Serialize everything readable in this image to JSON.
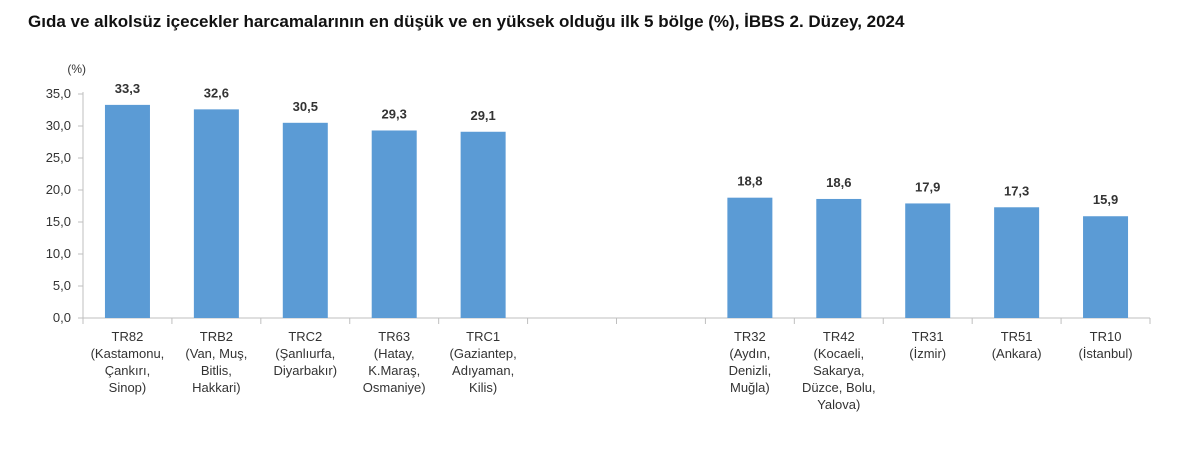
{
  "chart_data": {
    "type": "bar",
    "title": "Gıda ve alkolsüz içecekler harcamalarının en düşük ve en yüksek olduğu ilk 5 bölge (%), İBBS 2. Düzey, 2024",
    "ylabel": "(%)",
    "ylim": [
      0,
      35
    ],
    "yticks": [
      "0,0",
      "5,0",
      "10,0",
      "15,0",
      "20,0",
      "25,0",
      "30,0",
      "35,0"
    ],
    "grid": false,
    "bar_color": "#5B9BD5",
    "categories": [
      [
        "TR82",
        "(Kastamonu,",
        "Çankırı,",
        "Sinop)"
      ],
      [
        "TRB2",
        "(Van, Muş,",
        "Bitlis,",
        "Hakkari)"
      ],
      [
        "TRC2",
        "(Şanlıurfa,",
        "Diyarbakır)"
      ],
      [
        "TR63",
        "(Hatay,",
        "K.Maraş,",
        "Osmaniye)"
      ],
      [
        "TRC1",
        "(Gaziantep,",
        "Adıyaman,",
        "Kilis)"
      ],
      [],
      [],
      [
        "TR32",
        "(Aydın,",
        "Denizli,",
        "Muğla)"
      ],
      [
        "TR42",
        "(Kocaeli,",
        "Sakarya,",
        "Düzce, Bolu,",
        "Yalova)"
      ],
      [
        "TR31",
        "(İzmir)"
      ],
      [
        "TR51",
        "(Ankara)"
      ],
      [
        "TR10",
        "(İstanbul)"
      ]
    ],
    "values": [
      33.3,
      32.6,
      30.5,
      29.3,
      29.1,
      null,
      null,
      18.8,
      18.6,
      17.9,
      17.3,
      15.9
    ],
    "value_labels": [
      "33,3",
      "32,6",
      "30,5",
      "29,3",
      "29,1",
      "",
      "",
      "18,8",
      "18,6",
      "17,9",
      "17,3",
      "15,9"
    ]
  }
}
